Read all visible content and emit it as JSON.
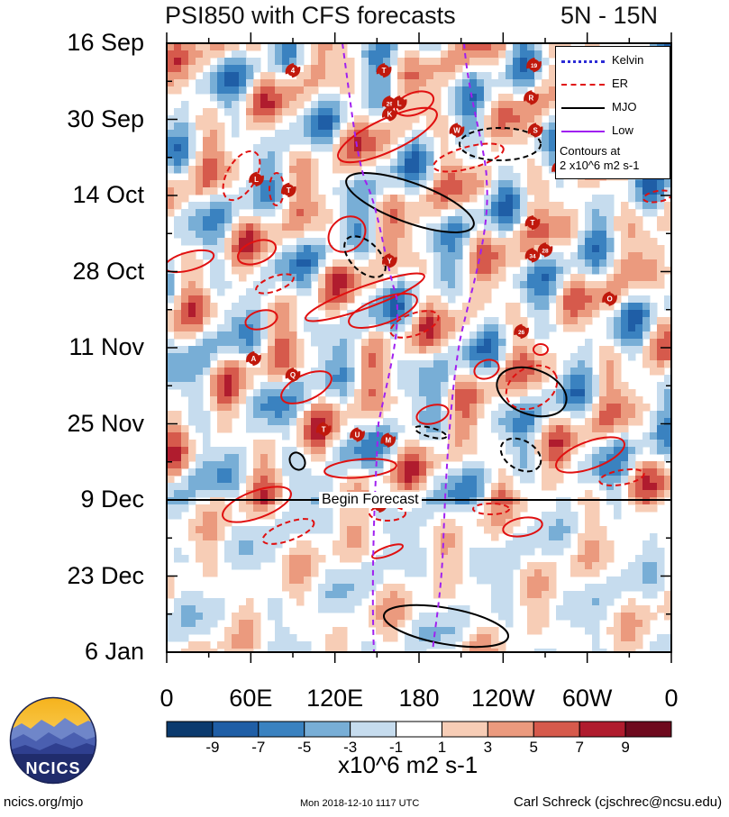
{
  "header": {
    "title": "PSI850 with CFS forecasts",
    "region": "5N - 15N"
  },
  "chart_data": {
    "type": "heatmap",
    "title": "PSI850 with CFS forecasts",
    "subtitle": "5N - 15N",
    "x_tick_labels": [
      "0",
      "60E",
      "120E",
      "180",
      "120W",
      "60W",
      "0"
    ],
    "x_tick_values_deg": [
      0,
      60,
      120,
      180,
      240,
      300,
      360
    ],
    "y_tick_labels": [
      "16 Sep",
      "30 Sep",
      "14 Oct",
      "28 Oct",
      "11 Nov",
      "25 Nov",
      "9 Dec",
      "23 Dec",
      "6 Jan"
    ],
    "y_axis_reversed": true,
    "forecast_start_label": "Begin Forecast",
    "forecast_start_date": "9 Dec",
    "colorbar": {
      "tick_labels": [
        "-9",
        "-7",
        "-5",
        "-3",
        "-1",
        "1",
        "3",
        "5",
        "7",
        "9"
      ],
      "levels": [
        -11,
        -9,
        -7,
        -5,
        -3,
        -1,
        1,
        3,
        5,
        7,
        9,
        11
      ],
      "colors": [
        "#0b3a6e",
        "#1f5ea6",
        "#3a82c0",
        "#78aed6",
        "#c6dcee",
        "#ffffff",
        "#f7cdb6",
        "#eb9a7e",
        "#d65a4c",
        "#b01c2e",
        "#6e0a1e"
      ],
      "units": "x10^6 m2 s-1"
    },
    "legend": {
      "entries": [
        {
          "name": "Kelvin",
          "color": "#2b2bd6",
          "style": "dotted"
        },
        {
          "name": "ER",
          "color": "#e01010",
          "style": "dashed"
        },
        {
          "name": "MJO",
          "color": "#000000",
          "style": "solid"
        },
        {
          "name": "Low",
          "color": "#a020f0",
          "style": "solid"
        }
      ],
      "note_line1": "Contours at",
      "note_line2": "2 x10^6 m2 s-1",
      "placement": "top-right"
    },
    "storm_markers": [
      {
        "label": "4",
        "lon": 90,
        "day": 5
      },
      {
        "label": "T",
        "lon": 155,
        "day": 5
      },
      {
        "label": "19",
        "lon": 262,
        "day": 4
      },
      {
        "label": "R",
        "lon": 260,
        "day": 10
      },
      {
        "label": "29",
        "lon": 159,
        "day": 11
      },
      {
        "label": "L",
        "lon": 166,
        "day": 11
      },
      {
        "label": "K",
        "lon": 159,
        "day": 13
      },
      {
        "label": "W",
        "lon": 207,
        "day": 16
      },
      {
        "label": "S",
        "lon": 263,
        "day": 16
      },
      {
        "label": "M",
        "lon": 280,
        "day": 23
      },
      {
        "label": "L",
        "lon": 64,
        "day": 25
      },
      {
        "label": "T",
        "lon": 87,
        "day": 27
      },
      {
        "label": "T",
        "lon": 261,
        "day": 33
      },
      {
        "label": "34",
        "lon": 261,
        "day": 39
      },
      {
        "label": "28",
        "lon": 270,
        "day": 38
      },
      {
        "label": "Y",
        "lon": 159,
        "day": 40
      },
      {
        "label": "O",
        "lon": 316,
        "day": 47
      },
      {
        "label": "26",
        "lon": 253,
        "day": 53
      },
      {
        "label": "A",
        "lon": 62,
        "day": 58
      },
      {
        "label": "Q",
        "lon": 90,
        "day": 61
      },
      {
        "label": "T",
        "lon": 112,
        "day": 71
      },
      {
        "label": "U",
        "lon": 136,
        "day": 72
      },
      {
        "label": "M",
        "lon": 158,
        "day": 73
      },
      {
        "label": "O",
        "lon": 152,
        "day": 85
      }
    ],
    "grid": false
  },
  "footer": {
    "left": "ncics.org/mjo",
    "center": "Mon 2018-12-10 1117 UTC",
    "right": "Carl Schreck (cjschrec@ncsu.edu)",
    "logo_text": "NCICS"
  }
}
